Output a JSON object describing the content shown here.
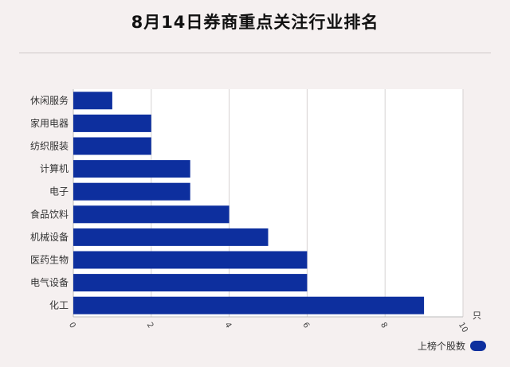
{
  "title": "8月14日券商重点关注行业排名",
  "chart_data": {
    "type": "bar",
    "orientation": "horizontal",
    "categories": [
      "休闲服务",
      "家用电器",
      "纺织服装",
      "计算机",
      "电子",
      "食品饮料",
      "机械设备",
      "医药生物",
      "电气设备",
      "化工"
    ],
    "series": [
      {
        "name": "上榜个股数",
        "values": [
          1,
          2,
          2,
          3,
          3,
          4,
          5,
          6,
          6,
          9
        ]
      }
    ],
    "xlim": [
      0,
      10
    ],
    "xticks": [
      "0",
      "2",
      "4",
      "6",
      "8",
      "10"
    ],
    "xunit": "只",
    "grid": true,
    "legend": "bottom-right",
    "bar_color": "#0d2f9e"
  }
}
